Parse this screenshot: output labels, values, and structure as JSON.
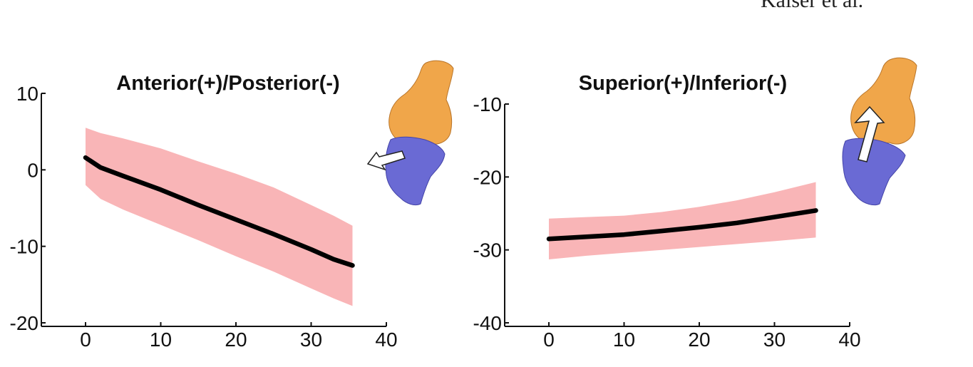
{
  "header": {
    "running_head": "Kaiser et al."
  },
  "bone_colors": {
    "femur": "#f0a64a",
    "tibia": "#6a6ad4",
    "arrow": "#ffffff"
  },
  "chart_data": [
    {
      "type": "line",
      "title": "Anterior(+)/Posterior(-)",
      "xlim": [
        -6,
        40
      ],
      "ylim": [
        -20,
        10
      ],
      "x_ticks": [
        0,
        10,
        20,
        30,
        40
      ],
      "y_ticks": [
        -20,
        -10,
        0,
        10
      ],
      "x_tick_labels": [
        "0",
        "10",
        "20",
        "30",
        "40"
      ],
      "y_tick_labels": [
        "-20",
        "-10",
        "0",
        "10"
      ],
      "band_color": "#f9b5b7",
      "line_color": "#000000",
      "x": [
        0,
        2,
        5,
        10,
        15,
        20,
        25,
        30,
        33,
        35.5
      ],
      "mean": [
        1.6,
        0.3,
        -0.8,
        -2.6,
        -4.6,
        -6.5,
        -8.4,
        -10.4,
        -11.7,
        -12.5
      ],
      "upper": [
        5.5,
        4.8,
        4.1,
        2.8,
        1.1,
        -0.5,
        -2.3,
        -4.6,
        -6.0,
        -7.3
      ],
      "lower": [
        -2.0,
        -3.8,
        -5.2,
        -7.2,
        -9.2,
        -11.3,
        -13.3,
        -15.5,
        -16.8,
        -17.8
      ]
    },
    {
      "type": "line",
      "title": "Superior(+)/Inferior(-)",
      "xlim": [
        -6,
        40
      ],
      "ylim": [
        -40,
        -10
      ],
      "x_ticks": [
        0,
        10,
        20,
        30,
        40
      ],
      "y_ticks": [
        -40,
        -30,
        -20,
        -10
      ],
      "x_tick_labels": [
        "0",
        "10",
        "20",
        "30",
        "40"
      ],
      "y_tick_labels": [
        "-40",
        "-30",
        "-20",
        "-10"
      ],
      "band_color": "#f9b5b7",
      "line_color": "#000000",
      "x": [
        0,
        5,
        10,
        15,
        20,
        25,
        30,
        35.5
      ],
      "mean": [
        -28.5,
        -28.2,
        -27.9,
        -27.4,
        -26.9,
        -26.3,
        -25.5,
        -24.6
      ],
      "upper": [
        -25.7,
        -25.5,
        -25.3,
        -24.8,
        -24.1,
        -23.2,
        -22.1,
        -20.7
      ],
      "lower": [
        -31.3,
        -30.8,
        -30.4,
        -30.0,
        -29.6,
        -29.2,
        -28.8,
        -28.3
      ]
    }
  ]
}
